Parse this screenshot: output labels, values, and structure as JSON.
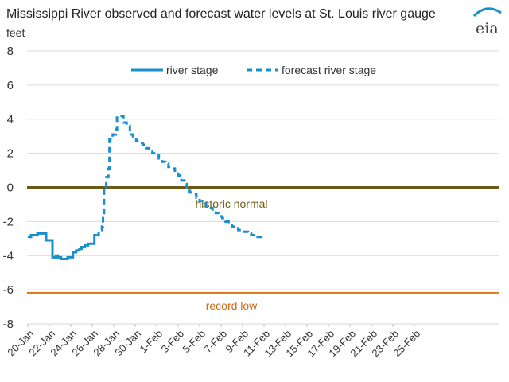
{
  "chart_data": {
    "type": "line",
    "title": "Mississippi  River observed  and forecast water levels at St. Louis river gauge",
    "ylabel": "feet",
    "xlabel": "",
    "ylim": [
      -8,
      8
    ],
    "yticks": [
      8,
      6,
      4,
      2,
      0,
      -2,
      -4,
      -6,
      -8
    ],
    "grid": true,
    "legend_position": "top",
    "categories": [
      "20-Jan",
      "22-Jan",
      "24-Jan",
      "26-Jan",
      "28-Jan",
      "30-Jan",
      "1-Feb",
      "3-Feb",
      "5-Feb",
      "7-Feb",
      "9-Feb",
      "11-Feb",
      "13-Feb",
      "15-Feb",
      "17-Feb",
      "19-Feb",
      "21-Feb",
      "23-Feb",
      "25-Feb"
    ],
    "series": [
      {
        "name": "river  stage",
        "color": "#1a8fd0",
        "style": "solid",
        "points": [
          [
            0,
            -2.9
          ],
          [
            0.3,
            -2.8
          ],
          [
            0.6,
            -2.8
          ],
          [
            0.9,
            -2.7
          ],
          [
            1.2,
            -2.7
          ],
          [
            1.5,
            -2.7
          ],
          [
            1.7,
            -3.1
          ],
          [
            2.1,
            -3.1
          ],
          [
            2.3,
            -4.1
          ],
          [
            2.6,
            -4.0
          ],
          [
            2.8,
            -4.1
          ],
          [
            3.1,
            -4.2
          ],
          [
            3.4,
            -4.2
          ],
          [
            3.7,
            -4.1
          ],
          [
            4.0,
            -4.1
          ],
          [
            4.2,
            -3.8
          ],
          [
            4.5,
            -3.7
          ],
          [
            4.8,
            -3.6
          ],
          [
            5.0,
            -3.5
          ],
          [
            5.3,
            -3.4
          ],
          [
            5.6,
            -3.3
          ],
          [
            5.9,
            -3.3
          ],
          [
            6.2,
            -2.8
          ],
          [
            6.4,
            -2.8
          ]
        ]
      },
      {
        "name": "forecast river  stage",
        "color": "#1a8fd0",
        "style": "dashed",
        "points": [
          [
            6.4,
            -2.8
          ],
          [
            6.6,
            -2.5
          ],
          [
            6.9,
            -2.3
          ],
          [
            7.0,
            -1.5
          ],
          [
            7.1,
            0
          ],
          [
            7.3,
            0.6
          ],
          [
            7.5,
            1.1
          ],
          [
            7.6,
            2.8
          ],
          [
            7.9,
            3.1
          ],
          [
            8.2,
            3.4
          ],
          [
            8.3,
            4.2
          ],
          [
            8.6,
            4.2
          ],
          [
            8.9,
            3.8
          ],
          [
            9.2,
            3.6
          ],
          [
            9.5,
            3.1
          ],
          [
            9.8,
            3.0
          ],
          [
            10.1,
            2.7
          ],
          [
            10.4,
            2.6
          ],
          [
            10.7,
            2.5
          ],
          [
            11.0,
            2.3
          ],
          [
            11.3,
            2.1
          ],
          [
            11.6,
            2.0
          ],
          [
            11.9,
            1.9
          ],
          [
            12.2,
            1.7
          ],
          [
            12.5,
            1.5
          ],
          [
            12.8,
            1.4
          ],
          [
            13.1,
            1.2
          ],
          [
            13.4,
            1.1
          ],
          [
            13.7,
            0.8
          ],
          [
            14.0,
            0.7
          ],
          [
            14.3,
            0.4
          ],
          [
            14.6,
            0.2
          ],
          [
            14.8,
            -0.2
          ],
          [
            15.1,
            -0.3
          ],
          [
            15.4,
            -0.4
          ],
          [
            15.7,
            -0.6
          ],
          [
            16.0,
            -0.8
          ],
          [
            16.3,
            -0.9
          ],
          [
            16.6,
            -1.1
          ],
          [
            16.9,
            -1.2
          ],
          [
            17.2,
            -1.4
          ],
          [
            17.5,
            -1.5
          ],
          [
            17.8,
            -1.7
          ],
          [
            18.1,
            -1.8
          ],
          [
            18.4,
            -2.0
          ],
          [
            18.7,
            -2.1
          ],
          [
            19.0,
            -2.3
          ],
          [
            19.3,
            -2.4
          ],
          [
            19.6,
            -2.5
          ],
          [
            19.9,
            -2.6
          ],
          [
            20.2,
            -2.6
          ],
          [
            20.5,
            -2.7
          ],
          [
            20.8,
            -2.8
          ],
          [
            21.1,
            -2.8
          ],
          [
            21.4,
            -2.9
          ],
          [
            21.7,
            -2.9
          ],
          [
            22.0,
            -3.0
          ]
        ]
      }
    ],
    "reference_lines": [
      {
        "name": "historic normal",
        "value": 0,
        "color": "#6b5a15",
        "label_color": "#6b5a15"
      },
      {
        "name": "record low",
        "value": -6.2,
        "color": "#e07b25",
        "label_color": "#c9691a"
      }
    ]
  },
  "logo": {
    "text": "eia"
  }
}
